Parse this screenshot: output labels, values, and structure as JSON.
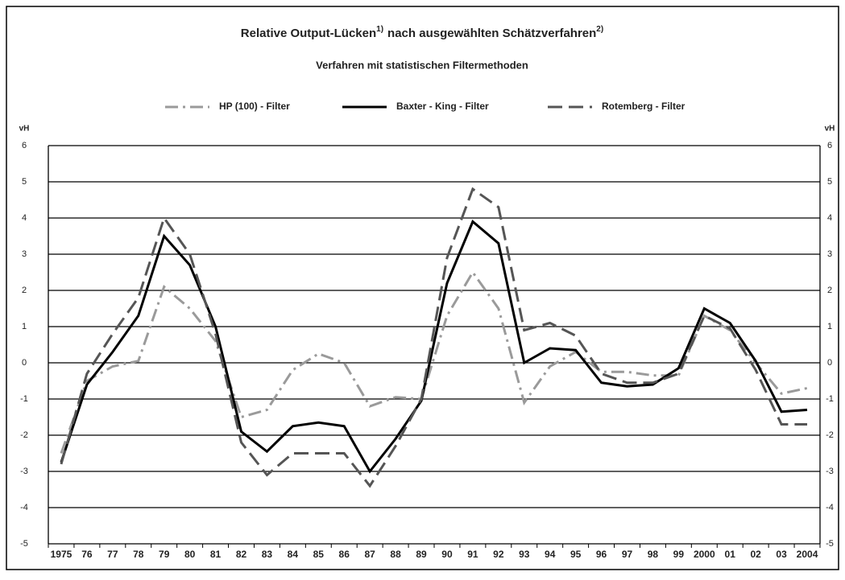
{
  "chart_data": {
    "type": "line",
    "title": [
      {
        "text": "Relative Output-Lücken",
        "sup": "1)"
      },
      {
        "text": "nach ausgewählten Schätzverfahren",
        "sup": "2)"
      }
    ],
    "subtitle": "Verfahren mit statistischen Filtermethoden",
    "y_label": "vH",
    "y2_label": "vH",
    "categories": [
      "1975",
      "76",
      "77",
      "78",
      "79",
      "80",
      "81",
      "82",
      "83",
      "84",
      "85",
      "86",
      "87",
      "88",
      "89",
      "90",
      "91",
      "92",
      "93",
      "94",
      "95",
      "96",
      "97",
      "98",
      "99",
      "2000",
      "01",
      "02",
      "03",
      "2004"
    ],
    "series": [
      {
        "name": "HP (100) - Filter",
        "color": "#9a9a9a",
        "dash": "dash-dot",
        "values": [
          -2.5,
          -0.5,
          -0.1,
          0.05,
          2.1,
          1.5,
          0.6,
          -1.5,
          -1.3,
          -0.2,
          0.25,
          0.0,
          -1.2,
          -0.95,
          -1.0,
          1.3,
          2.5,
          1.5,
          -1.1,
          -0.1,
          0.3,
          -0.25,
          -0.25,
          -0.35,
          -0.35,
          1.3,
          0.9,
          0.0,
          -0.85,
          -0.7
        ]
      },
      {
        "name": "Baxter - King - Filter",
        "color": "#000000",
        "dash": "solid",
        "values": [
          -2.75,
          -0.6,
          0.3,
          1.3,
          3.5,
          2.7,
          1.0,
          -1.9,
          -2.45,
          -1.75,
          -1.65,
          -1.75,
          -3.0,
          -2.1,
          -1.05,
          2.2,
          3.9,
          3.3,
          0.0,
          0.4,
          0.35,
          -0.55,
          -0.65,
          -0.6,
          -0.15,
          1.5,
          1.1,
          0.05,
          -1.35,
          -1.3
        ]
      },
      {
        "name": "Rotemberg - Filter",
        "color": "#555555",
        "dash": "dashed",
        "values": [
          -2.8,
          -0.3,
          0.8,
          1.8,
          4.0,
          3.0,
          0.8,
          -2.2,
          -3.1,
          -2.5,
          -2.5,
          -2.5,
          -3.4,
          -2.3,
          -1.0,
          2.9,
          4.8,
          4.3,
          0.9,
          1.1,
          0.75,
          -0.3,
          -0.55,
          -0.55,
          -0.3,
          1.3,
          0.95,
          -0.2,
          -1.7,
          -1.7
        ]
      }
    ],
    "ylim": [
      -5,
      6
    ],
    "yticks": [
      -5,
      -4,
      -3,
      -2,
      -1,
      0,
      1,
      2,
      3,
      4,
      5,
      6
    ],
    "grid": true
  }
}
